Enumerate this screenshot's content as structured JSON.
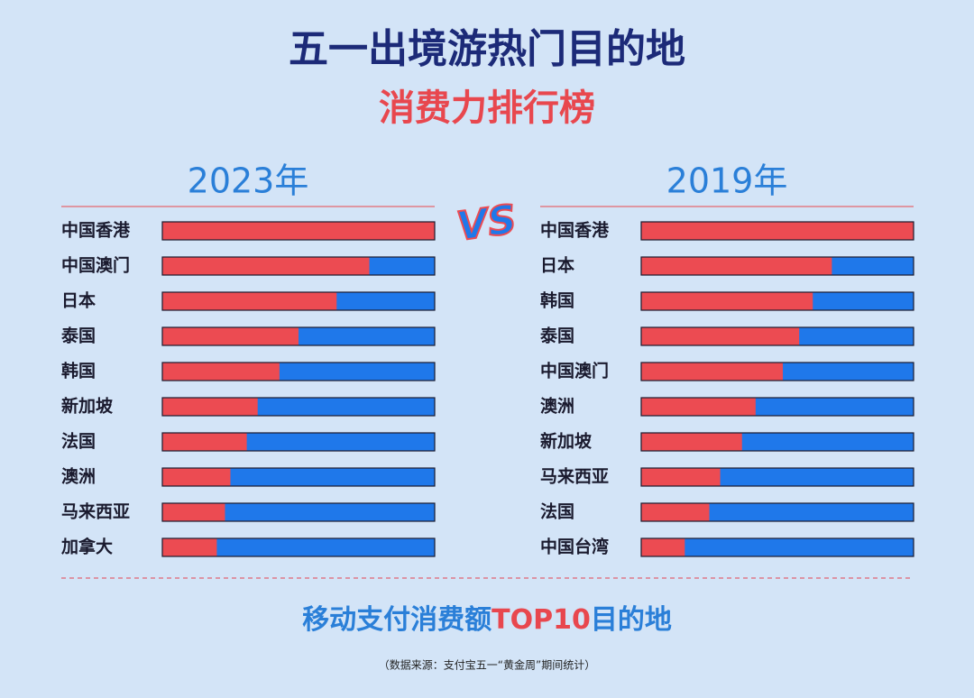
{
  "title": "五一出境游热门目的地",
  "subtitle": "消费力排行榜",
  "vs": "VS",
  "footer": [
    "移动支付消费额",
    "TOP10",
    "目的地"
  ],
  "source": "（数据来源：支付宝五一“黄金周”期间统计）",
  "chart_data": [
    {
      "type": "bar",
      "orientation": "horizontal",
      "title": "2023年",
      "categories": [
        "中国香港",
        "中国澳门",
        "日本",
        "泰国",
        "韩国",
        "新加坡",
        "法国",
        "澳洲",
        "马来西亚",
        "加拿大"
      ],
      "values": [
        100,
        76,
        64,
        50,
        43,
        35,
        31,
        25,
        23,
        20
      ],
      "color": "#ec4b52",
      "track_color": "#1f78ea",
      "xlim": [
        0,
        100
      ]
    },
    {
      "type": "bar",
      "orientation": "horizontal",
      "title": "2019年",
      "categories": [
        "中国香港",
        "日本",
        "韩国",
        "泰国",
        "中国澳门",
        "澳洲",
        "新加坡",
        "马来西亚",
        "法国",
        "中国台湾"
      ],
      "values": [
        100,
        70,
        63,
        58,
        52,
        42,
        37,
        29,
        25,
        16
      ],
      "color": "#ec4b52",
      "track_color": "#1f78ea",
      "xlim": [
        0,
        100
      ]
    }
  ]
}
